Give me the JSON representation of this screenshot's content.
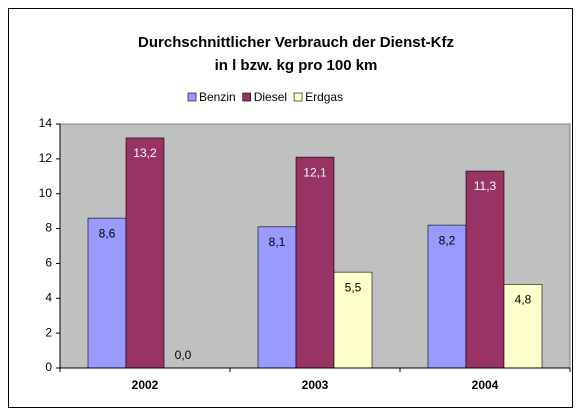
{
  "chart_data": {
    "type": "bar",
    "title": [
      "Durchschnittlicher Verbrauch der Dienst-Kfz",
      "in l bzw. kg pro 100 km"
    ],
    "categories": [
      "2002",
      "2003",
      "2004"
    ],
    "series": [
      {
        "name": "Benzin",
        "color": "#9999ff",
        "values": [
          8.6,
          8.1,
          8.2
        ],
        "value_labels": [
          "8,6",
          "8,1",
          "8,2"
        ]
      },
      {
        "name": "Diesel",
        "color": "#993366",
        "values": [
          13.2,
          12.1,
          11.3
        ],
        "value_labels": [
          "13,2",
          "12,1",
          "11,3"
        ]
      },
      {
        "name": "Erdgas",
        "color": "#ffffcc",
        "values": [
          0.0,
          5.5,
          4.8
        ],
        "value_labels": [
          "0,0",
          "5,5",
          "4,8"
        ]
      }
    ],
    "ylim": [
      0,
      14
    ],
    "yticks": [
      0,
      2,
      4,
      6,
      8,
      10,
      12,
      14
    ],
    "grid": false,
    "legend": "top"
  }
}
